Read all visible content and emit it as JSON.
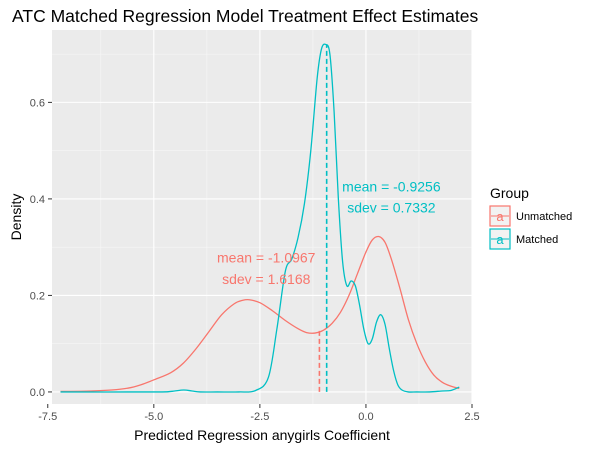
{
  "chart_data": {
    "type": "area",
    "title": "ATC Matched Regression Model Treatment Effect Estimates",
    "xlabel": "Predicted Regression anygirls Coefficient",
    "ylabel": "Density",
    "xlim": [
      -7.4,
      2.5
    ],
    "ylim": [
      -0.025,
      0.75
    ],
    "x_ticks": [
      -7.5,
      -5.0,
      -2.5,
      0.0,
      2.5
    ],
    "x_tick_labels": [
      "-7.5",
      "-5.0",
      "-2.5",
      "0.0",
      "2.5"
    ],
    "y_ticks": [
      0.0,
      0.2,
      0.4,
      0.6
    ],
    "y_tick_labels": [
      "0.0",
      "0.2",
      "0.4",
      "0.6"
    ],
    "grid": true,
    "legend": {
      "title": "Group",
      "position": "right",
      "key_glyph": "a",
      "entries": [
        "Unmatched",
        "Matched"
      ]
    },
    "colors": {
      "Unmatched": "#F8766D",
      "Matched": "#00BFC4",
      "panel": "#EBEBEB",
      "grid": "#FFFFFF"
    },
    "series": [
      {
        "name": "Unmatched",
        "color": "#F8766D",
        "mean": -1.0967,
        "mean_density": 0.13,
        "x": [
          -7.2,
          -6.5,
          -6.0,
          -5.6,
          -5.3,
          -5.0,
          -4.6,
          -4.3,
          -4.0,
          -3.7,
          -3.4,
          -3.1,
          -2.9,
          -2.75,
          -2.5,
          -2.2,
          -1.9,
          -1.6,
          -1.4,
          -1.2,
          -1.0,
          -0.8,
          -0.6,
          -0.4,
          -0.2,
          0.0,
          0.15,
          0.3,
          0.45,
          0.6,
          0.8,
          1.0,
          1.2,
          1.4,
          1.6,
          1.8,
          2.0,
          2.2
        ],
        "y": [
          0.001,
          0.002,
          0.004,
          0.008,
          0.015,
          0.025,
          0.04,
          0.06,
          0.09,
          0.125,
          0.16,
          0.183,
          0.19,
          0.191,
          0.185,
          0.168,
          0.148,
          0.131,
          0.123,
          0.122,
          0.128,
          0.142,
          0.165,
          0.2,
          0.245,
          0.29,
          0.315,
          0.322,
          0.31,
          0.275,
          0.215,
          0.15,
          0.1,
          0.062,
          0.035,
          0.02,
          0.012,
          0.007
        ]
      },
      {
        "name": "Matched",
        "color": "#00BFC4",
        "mean": -0.9256,
        "mean_density": 0.72,
        "x": [
          -7.2,
          -5.0,
          -4.6,
          -4.3,
          -4.1,
          -3.9,
          -3.5,
          -3.0,
          -2.6,
          -2.3,
          -2.1,
          -1.9,
          -1.75,
          -1.6,
          -1.45,
          -1.3,
          -1.15,
          -1.05,
          -0.95,
          -0.85,
          -0.75,
          -0.65,
          -0.55,
          -0.45,
          -0.35,
          -0.25,
          -0.15,
          -0.05,
          0.05,
          0.15,
          0.25,
          0.35,
          0.45,
          0.55,
          0.65,
          0.75,
          0.85,
          1.0,
          1.2,
          1.5,
          1.8,
          2.0,
          2.2
        ],
        "y": [
          0.0,
          0.0,
          0.001,
          0.004,
          0.002,
          0.0,
          0.0,
          0.0,
          0.003,
          0.03,
          0.13,
          0.25,
          0.275,
          0.32,
          0.39,
          0.5,
          0.65,
          0.71,
          0.72,
          0.7,
          0.58,
          0.4,
          0.27,
          0.22,
          0.23,
          0.22,
          0.18,
          0.13,
          0.1,
          0.11,
          0.145,
          0.16,
          0.14,
          0.09,
          0.045,
          0.015,
          0.004,
          0.0,
          0.0,
          0.0,
          0.002,
          0.003,
          0.01
        ]
      }
    ],
    "annotations": [
      {
        "series": "Unmatched",
        "line1": "mean = -1.0967",
        "line2": "sdev =  1.6168",
        "x": -2.35,
        "y1": 0.268,
        "y2": 0.224
      },
      {
        "series": "Matched",
        "line1": "mean = -0.9256",
        "line2": "sdev =  0.7332",
        "x": 0.6,
        "y1": 0.415,
        "y2": 0.372
      }
    ]
  }
}
